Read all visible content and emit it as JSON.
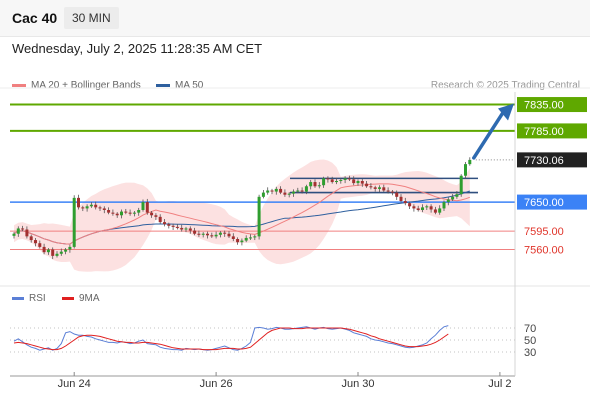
{
  "header": {
    "symbol": "Cac 40",
    "timeframe": "30 MIN"
  },
  "timestamp": "Wednesday, July 2, 2025 11:28:35 AM CET",
  "credit": "Research © 2025 Trading Central",
  "legend": [
    {
      "label": "MA 20 + Bollinger Bands",
      "color": "#f08080"
    },
    {
      "label": "MA 50",
      "color": "#2e5f9e"
    }
  ],
  "rsi_legend": [
    {
      "label": "RSI",
      "color": "#5b7fd6"
    },
    {
      "label": "9MA",
      "color": "#e02020"
    }
  ],
  "chart_data": {
    "type": "candlestick",
    "instrument": "Cac 40",
    "timeframe": "30 MIN",
    "x_ticks": [
      {
        "label": "Jun 24",
        "bar": 14
      },
      {
        "label": "Jun 26",
        "bar": 47
      },
      {
        "label": "Jun 30",
        "bar": 80
      },
      {
        "label": "Jul 2",
        "bar": 113
      }
    ],
    "y_range": [
      7525,
      7855
    ],
    "levels": [
      {
        "value": 7835.0,
        "label": "7835.00",
        "style": "resistance"
      },
      {
        "value": 7785.0,
        "label": "7785.00",
        "style": "resistance"
      },
      {
        "value": 7730.06,
        "label": "7730.06",
        "style": "last"
      },
      {
        "value": 7650.0,
        "label": "7650.00",
        "style": "pivot"
      },
      {
        "value": 7595.0,
        "label": "7595.00",
        "style": "support"
      },
      {
        "value": 7560.0,
        "label": "7560.00",
        "style": "support"
      }
    ],
    "close": [
      7590,
      7600,
      7598,
      7585,
      7578,
      7572,
      7565,
      7555,
      7560,
      7548,
      7552,
      7556,
      7560,
      7565,
      7658,
      7640,
      7638,
      7642,
      7645,
      7640,
      7638,
      7635,
      7630,
      7628,
      7625,
      7632,
      7630,
      7628,
      7630,
      7635,
      7650,
      7630,
      7625,
      7622,
      7612,
      7608,
      7605,
      7603,
      7601,
      7598,
      7600,
      7596,
      7590,
      7588,
      7590,
      7587,
      7585,
      7588,
      7592,
      7590,
      7585,
      7580,
      7574,
      7577,
      7582,
      7583,
      7585,
      7660,
      7668,
      7672,
      7670,
      7675,
      7668,
      7664,
      7666,
      7670,
      7672,
      7670,
      7680,
      7688,
      7680,
      7682,
      7695,
      7693,
      7688,
      7690,
      7692,
      7695,
      7693,
      7686,
      7690,
      7685,
      7680,
      7678,
      7675,
      7678,
      7672,
      7670,
      7668,
      7660,
      7652,
      7648,
      7642,
      7638,
      7635,
      7640,
      7642,
      7636,
      7630,
      7638,
      7650,
      7655,
      7660,
      7665,
      7700,
      7722,
      7730
    ],
    "rsi": {
      "values": [
        48,
        52,
        47,
        42,
        38,
        36,
        33,
        35,
        37,
        33,
        36,
        44,
        62,
        64,
        60,
        58,
        58,
        56,
        55,
        52,
        50,
        48,
        46,
        46,
        45,
        47,
        46,
        44,
        45,
        48,
        50,
        44,
        43,
        42,
        38,
        36,
        35,
        34,
        34,
        33,
        36,
        35,
        34,
        35,
        34,
        33,
        34,
        36,
        38,
        40,
        37,
        34,
        33,
        36,
        40,
        46,
        70,
        71,
        70,
        68,
        69,
        71,
        70,
        68,
        68,
        69,
        70,
        71,
        72,
        70,
        68,
        70,
        71,
        69,
        68,
        69,
        70,
        68,
        66,
        62,
        60,
        58,
        56,
        52,
        50,
        49,
        47,
        45,
        44,
        42,
        40,
        38,
        37,
        38,
        40,
        42,
        45,
        52,
        58,
        66,
        72,
        74
      ],
      "ma9": [
        45,
        46,
        45,
        44,
        42,
        40,
        38,
        36,
        35,
        34,
        34,
        36,
        40,
        45,
        50,
        55,
        57,
        58,
        58,
        57,
        56,
        54,
        52,
        50,
        48,
        47,
        46,
        46,
        45,
        45,
        46,
        46,
        45,
        44,
        43,
        41,
        39,
        37,
        36,
        35,
        35,
        35,
        35,
        35,
        34,
        34,
        34,
        34,
        35,
        36,
        36,
        36,
        35,
        35,
        36,
        38,
        44,
        50,
        56,
        62,
        66,
        68,
        70,
        70,
        70,
        69,
        69,
        69,
        70,
        70,
        70,
        70,
        70,
        70,
        70,
        70,
        70,
        69,
        68,
        66,
        64,
        62,
        60,
        57,
        55,
        52,
        50,
        48,
        46,
        44,
        42,
        40,
        39,
        39,
        39,
        40,
        41,
        43,
        46,
        50,
        55,
        60
      ],
      "levels": [
        70,
        50,
        30
      ]
    }
  }
}
